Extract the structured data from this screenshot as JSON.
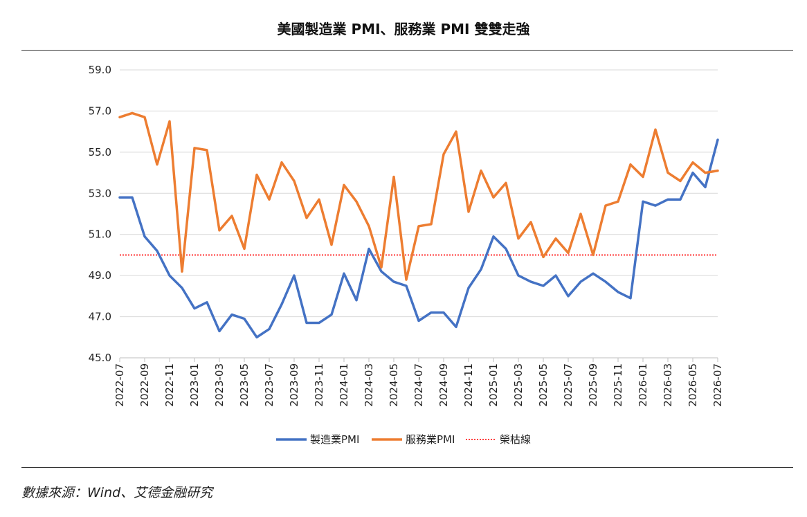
{
  "title": "美國製造業 PMI、服務業 PMI 雙雙走強",
  "source": "數據來源：Wind、艾德金融研究",
  "chart_data": {
    "type": "line",
    "title": "美國製造業 PMI、服務業 PMI 雙雙走強",
    "xlabel": "",
    "ylabel": "",
    "ylim": [
      45,
      59
    ],
    "yticks": [
      "45.0",
      "47.0",
      "49.0",
      "51.0",
      "53.0",
      "55.0",
      "57.0",
      "59.0"
    ],
    "grid": true,
    "legend_position": "bottom",
    "categories": [
      "2022-07",
      "2022-08",
      "2022-09",
      "2022-10",
      "2022-11",
      "2022-12",
      "2023-01",
      "2023-02",
      "2023-03",
      "2023-04",
      "2023-05",
      "2023-06",
      "2023-07",
      "2023-08",
      "2023-09",
      "2023-10",
      "2023-11",
      "2023-12",
      "2024-01",
      "2024-02",
      "2024-03",
      "2024-04",
      "2024-05",
      "2024-06",
      "2024-07",
      "2024-08",
      "2024-09",
      "2024-10",
      "2024-11",
      "2024-12",
      "2025-01",
      "2025-02",
      "2025-03",
      "2025-04",
      "2025-05",
      "2025-06",
      "2025-07",
      "2025-08",
      "2025-09",
      "2025-10",
      "2025-11",
      "2025-12",
      "2026-01",
      "2026-02",
      "2026-03",
      "2026-04",
      "2026-05",
      "2026-06",
      "2026-07"
    ],
    "xtick_labels": [
      "2022-07",
      "2022-09",
      "2022-11",
      "2023-01",
      "2023-03",
      "2023-05",
      "2023-07",
      "2023-09",
      "2023-11",
      "2024-01",
      "2024-03",
      "2024-05",
      "2024-07",
      "2024-09",
      "2024-11",
      "2025-01",
      "2025-03",
      "2025-05",
      "2025-07",
      "2025-09",
      "2025-11",
      "2026-01",
      "2026-03",
      "2026-05",
      "2026-07"
    ],
    "series": [
      {
        "name": "製造業PMI",
        "color": "#4472C4",
        "style": "solid",
        "values": [
          52.8,
          52.8,
          50.9,
          50.2,
          49.0,
          48.4,
          47.4,
          47.7,
          46.3,
          47.1,
          46.9,
          46.0,
          46.4,
          47.6,
          49.0,
          46.7,
          46.7,
          47.1,
          49.1,
          47.8,
          50.3,
          49.2,
          48.7,
          48.5,
          46.8,
          47.2,
          47.2,
          46.5,
          48.4,
          49.3,
          50.9,
          50.3,
          49.0,
          48.7,
          48.5,
          49.0,
          48.0,
          48.7,
          49.1,
          48.7,
          48.2,
          47.9,
          52.6,
          52.4,
          52.7,
          52.7,
          54.0,
          53.3,
          55.6
        ]
      },
      {
        "name": "服務業PMI",
        "color": "#ED7D31",
        "style": "solid",
        "values": [
          56.7,
          56.9,
          56.7,
          54.4,
          56.5,
          49.2,
          55.2,
          55.1,
          51.2,
          51.9,
          50.3,
          53.9,
          52.7,
          54.5,
          53.6,
          51.8,
          52.7,
          50.5,
          53.4,
          52.6,
          51.4,
          49.4,
          53.8,
          48.8,
          51.4,
          51.5,
          54.9,
          56.0,
          52.1,
          54.1,
          52.8,
          53.5,
          50.8,
          51.6,
          49.9,
          50.8,
          50.1,
          52.0,
          50.0,
          52.4,
          52.6,
          54.4,
          53.8,
          56.1,
          54.0,
          53.6,
          54.5,
          54.0,
          54.1
        ]
      },
      {
        "name": "榮枯線",
        "color": "#FF0000",
        "style": "dotted",
        "values": [
          50,
          50,
          50,
          50,
          50,
          50,
          50,
          50,
          50,
          50,
          50,
          50,
          50,
          50,
          50,
          50,
          50,
          50,
          50,
          50,
          50,
          50,
          50,
          50,
          50,
          50,
          50,
          50,
          50,
          50,
          50,
          50,
          50,
          50,
          50,
          50,
          50,
          50,
          50,
          50,
          50,
          50,
          50,
          50,
          50,
          50,
          50,
          50,
          50
        ]
      }
    ]
  }
}
